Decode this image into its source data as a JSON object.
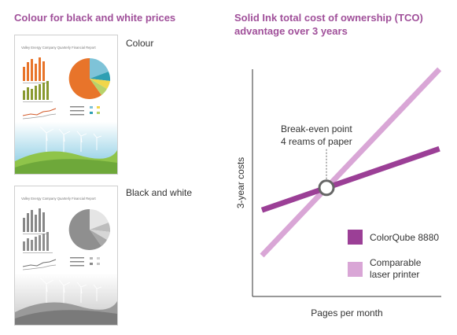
{
  "left_heading": "Colour for black and white prices",
  "right_heading": "Solid Ink total cost of ownership (TCO) advantage over 3 years",
  "thumbnails": {
    "colour_label": "Colour",
    "bw_label": "Black and white",
    "report_title": "Valley Energy Company Quarterly Financial Report"
  },
  "colors": {
    "heading": "#a0509a",
    "colorqube": "#9b3f96",
    "laser": "#d9a6d6",
    "axis": "#333333"
  },
  "chart_data": {
    "type": "line",
    "xlabel": "Pages per month",
    "ylabel": "3-year costs",
    "xlim": [
      0,
      10
    ],
    "ylim": [
      0,
      10
    ],
    "grid": false,
    "legend_position": "bottom-right",
    "series": [
      {
        "name": "ColorQube 8880",
        "x": [
          0.5,
          9.9
        ],
        "y": [
          3.8,
          6.5
        ],
        "color": "#9b3f96"
      },
      {
        "name": "Comparable laser printer",
        "x": [
          0.5,
          9.9
        ],
        "y": [
          1.8,
          10.0
        ],
        "color": "#d9a6d6"
      }
    ],
    "annotations": [
      {
        "text": "Break-even point",
        "x": 3.0,
        "y": 4.5
      },
      {
        "text": "4 reams of paper",
        "x": 3.0,
        "y": 4.5
      }
    ]
  }
}
